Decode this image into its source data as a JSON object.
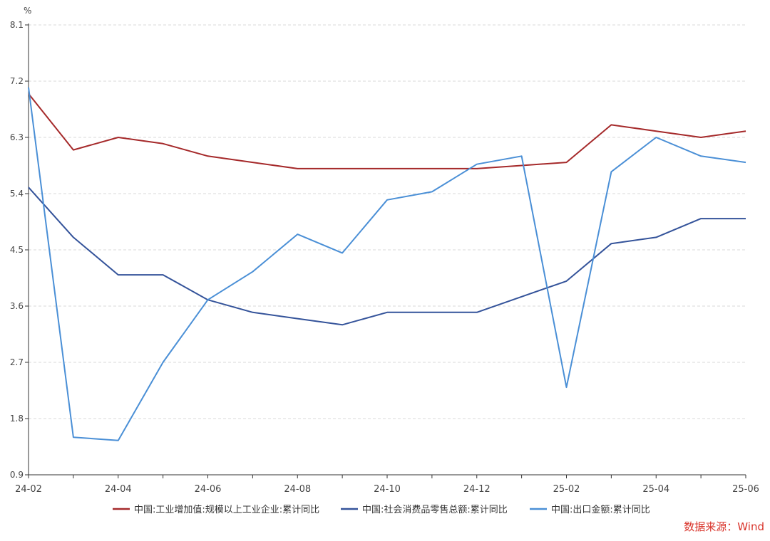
{
  "chart_data": {
    "type": "line",
    "y_unit_label": "%",
    "categories": [
      "24-02",
      "24-03",
      "24-04",
      "24-05",
      "24-06",
      "24-07",
      "24-08",
      "24-09",
      "24-10",
      "24-11",
      "24-12",
      "25-01",
      "25-02",
      "25-03",
      "25-04",
      "25-05",
      "25-06"
    ],
    "x_tick_labels": [
      "24-02",
      "24-04",
      "24-06",
      "24-08",
      "24-10",
      "24-12",
      "25-02",
      "25-04",
      "25-06"
    ],
    "y_ticks": [
      0.9,
      1.8,
      2.7,
      3.6,
      4.5,
      5.4,
      6.3,
      7.2,
      8.1
    ],
    "y_tick_labels": [
      "0.9",
      "1.8",
      "2.7",
      "3.6",
      "4.5",
      "5.4",
      "6.3",
      "7.2",
      "8.1"
    ],
    "ylim": [
      0.9,
      8.1
    ],
    "grid": true,
    "legend_position": "bottom",
    "series": [
      {
        "name": "中国:工业增加值:规模以上工业企业:累计同比",
        "color": "#a5292a",
        "values": [
          7.0,
          6.1,
          6.3,
          6.2,
          6.0,
          5.9,
          5.8,
          5.8,
          5.8,
          5.8,
          5.8,
          5.85,
          5.9,
          6.5,
          6.4,
          6.3,
          6.4
        ]
      },
      {
        "name": "中国:社会消费品零售总额:累计同比",
        "color": "#34539a",
        "values": [
          5.5,
          4.7,
          4.1,
          4.1,
          3.7,
          3.5,
          3.4,
          3.3,
          3.5,
          3.5,
          3.5,
          3.75,
          4.0,
          4.6,
          4.7,
          5.0,
          5.0
        ]
      },
      {
        "name": "中国:出口金额:累计同比",
        "color": "#4a8fd6",
        "values": [
          7.1,
          1.5,
          1.45,
          2.7,
          3.7,
          4.15,
          4.75,
          4.45,
          5.3,
          5.43,
          5.87,
          6.0,
          2.3,
          5.75,
          6.3,
          6.0,
          5.9
        ]
      }
    ]
  },
  "source_note": "数据来源：Wind"
}
